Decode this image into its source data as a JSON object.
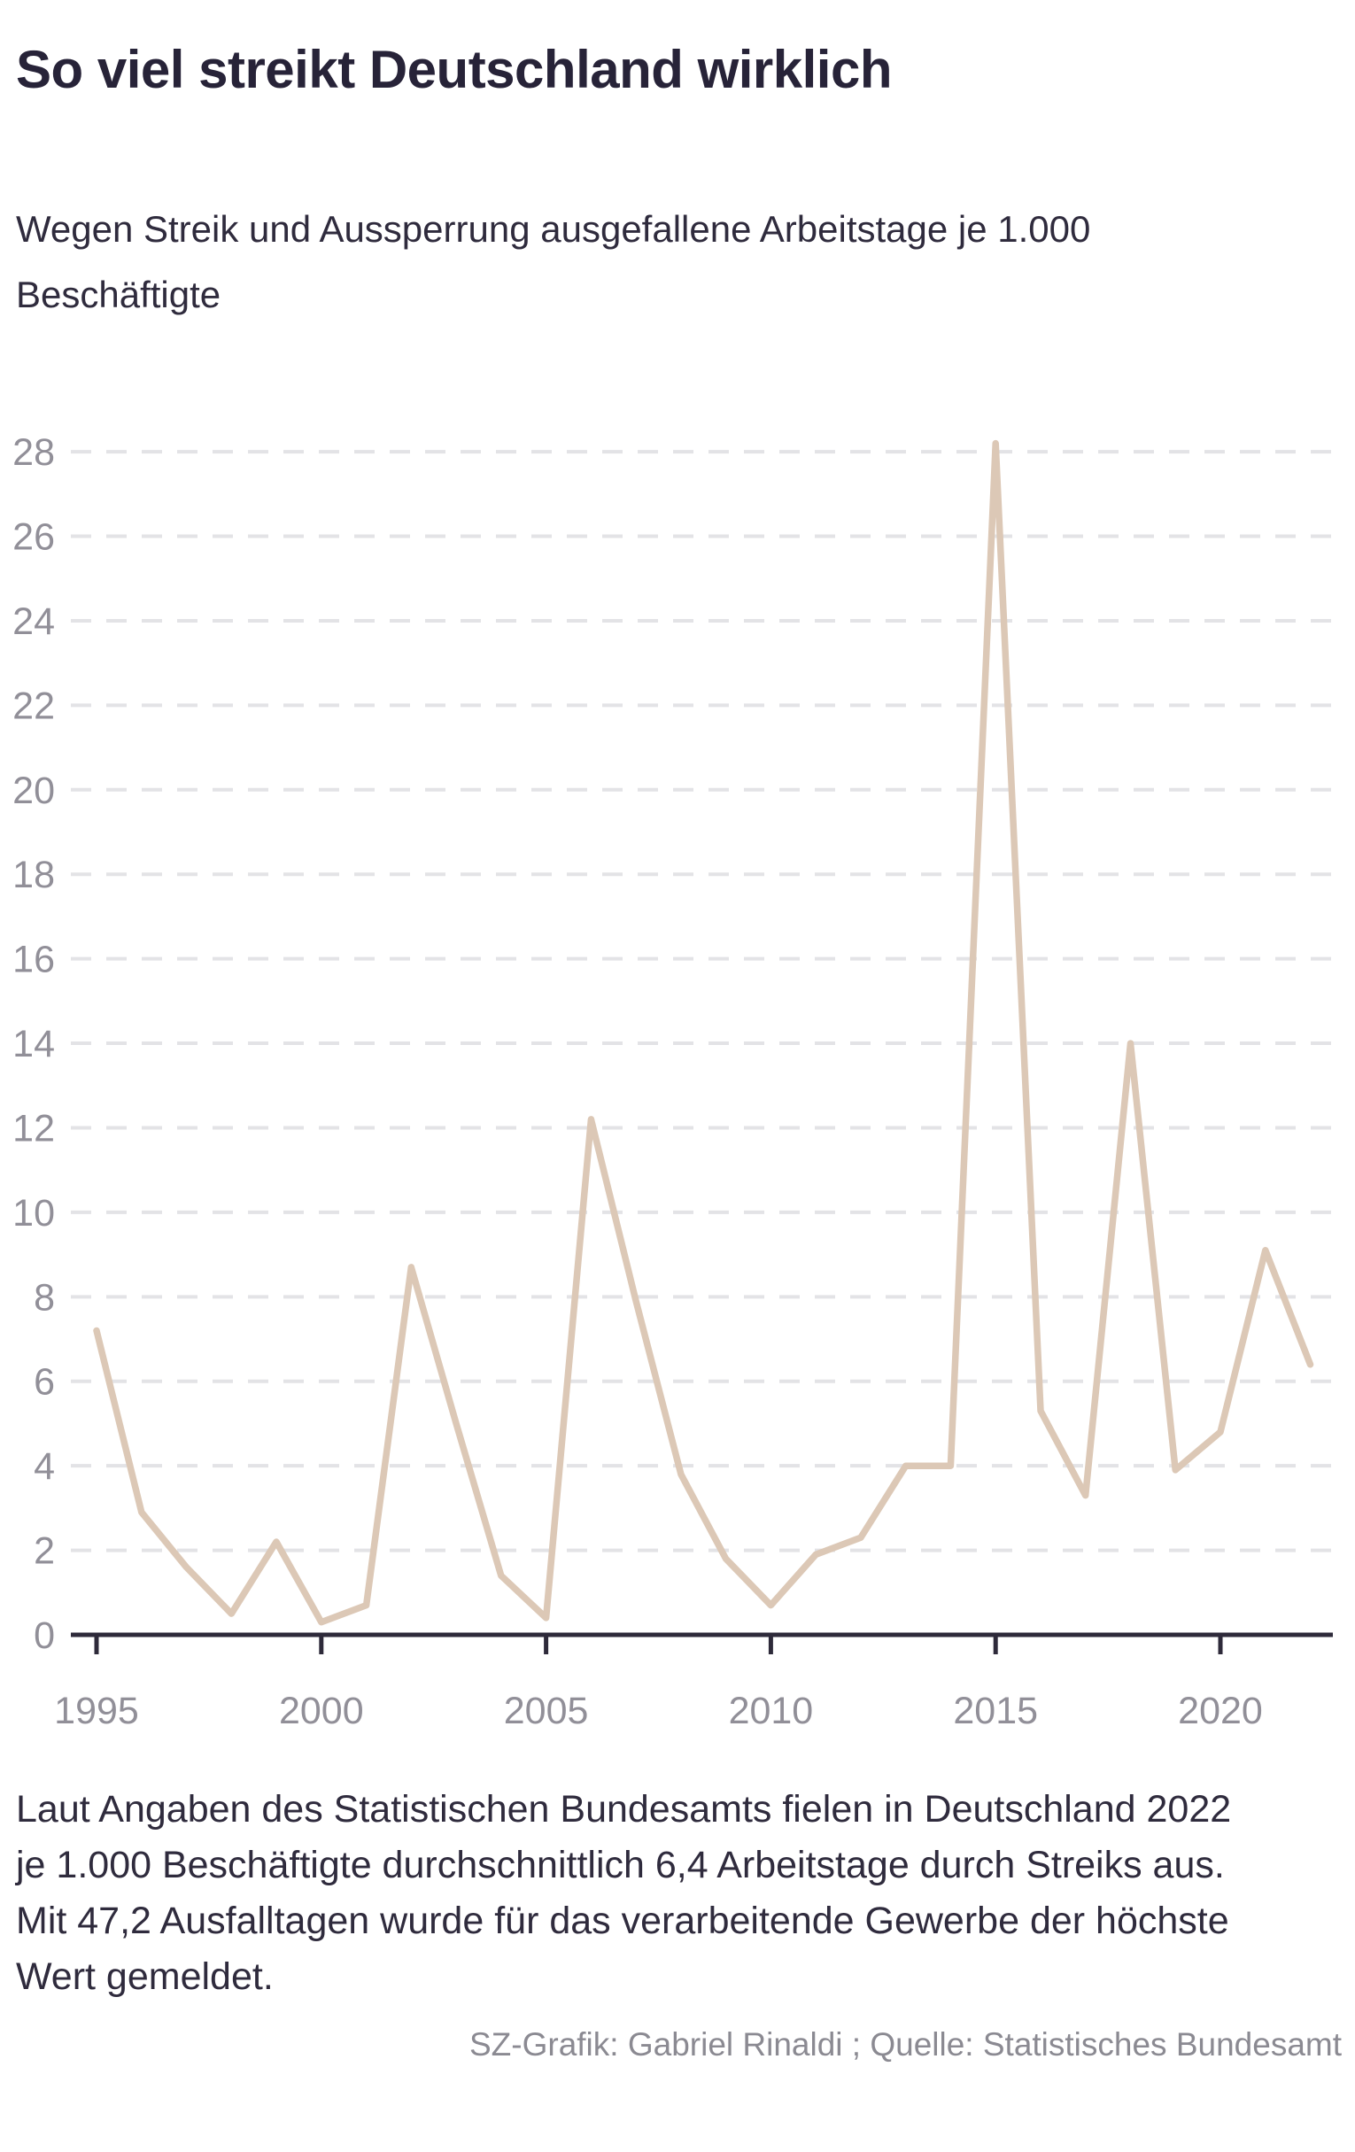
{
  "header": {
    "title": "So viel streikt Deutschland wirklich",
    "subtitle": "Wegen Streik und Aussperrung ausgefallene Arbeitstage je 1.000\nBeschäftigte"
  },
  "chart_data": {
    "type": "line",
    "title": "So viel streikt Deutschland wirklich",
    "subtitle": "Wegen Streik und Aussperrung ausgefallene Arbeitstage je 1.000 Beschäftigte",
    "x": [
      1995,
      1996,
      1997,
      1998,
      1999,
      2000,
      2001,
      2002,
      2003,
      2004,
      2005,
      2006,
      2007,
      2008,
      2009,
      2010,
      2011,
      2012,
      2013,
      2014,
      2015,
      2016,
      2017,
      2018,
      2019,
      2020,
      2021,
      2022
    ],
    "series": [
      {
        "name": "Wegen Streik und Aussperrung ausgefallene Arbeitstage je 1.000 Beschäftigte",
        "values": [
          7.2,
          2.9,
          1.6,
          0.5,
          2.2,
          0.3,
          0.7,
          8.7,
          5.0,
          1.4,
          0.4,
          12.2,
          7.9,
          3.8,
          1.8,
          0.7,
          1.9,
          2.3,
          4.0,
          4.0,
          28.2,
          5.3,
          3.3,
          14.0,
          3.9,
          4.8,
          9.1,
          6.4
        ]
      }
    ],
    "xlabel": "",
    "ylabel": "",
    "ylim": [
      0,
      29
    ],
    "xlim": [
      1995,
      2022
    ],
    "yticks": [
      0,
      2,
      4,
      6,
      8,
      10,
      12,
      14,
      16,
      18,
      20,
      22,
      24,
      26,
      28
    ],
    "xticks": [
      1995,
      2000,
      2005,
      2010,
      2015,
      2020
    ],
    "grid": "horizontal-dashed",
    "legend": "none",
    "line_color": "#dcc8b6",
    "grid_color": "#e3e3e6",
    "axis_color": "#2e2a3a",
    "tick_label_color": "#918f98"
  },
  "footer": {
    "text": "Laut Angaben des Statistischen Bundesamts fielen in Deutschland 2022\nje 1.000 Beschäftigte durchschnittlich 6,4 Arbeitstage durch Streiks aus.\nMit 47,2 Ausfalltagen wurde für das verarbeitende Gewerbe der höchste\nWert gemeldet.",
    "credit": "SZ-Grafik: Gabriel Rinaldi ; Quelle: Statistisches Bundesamt"
  }
}
